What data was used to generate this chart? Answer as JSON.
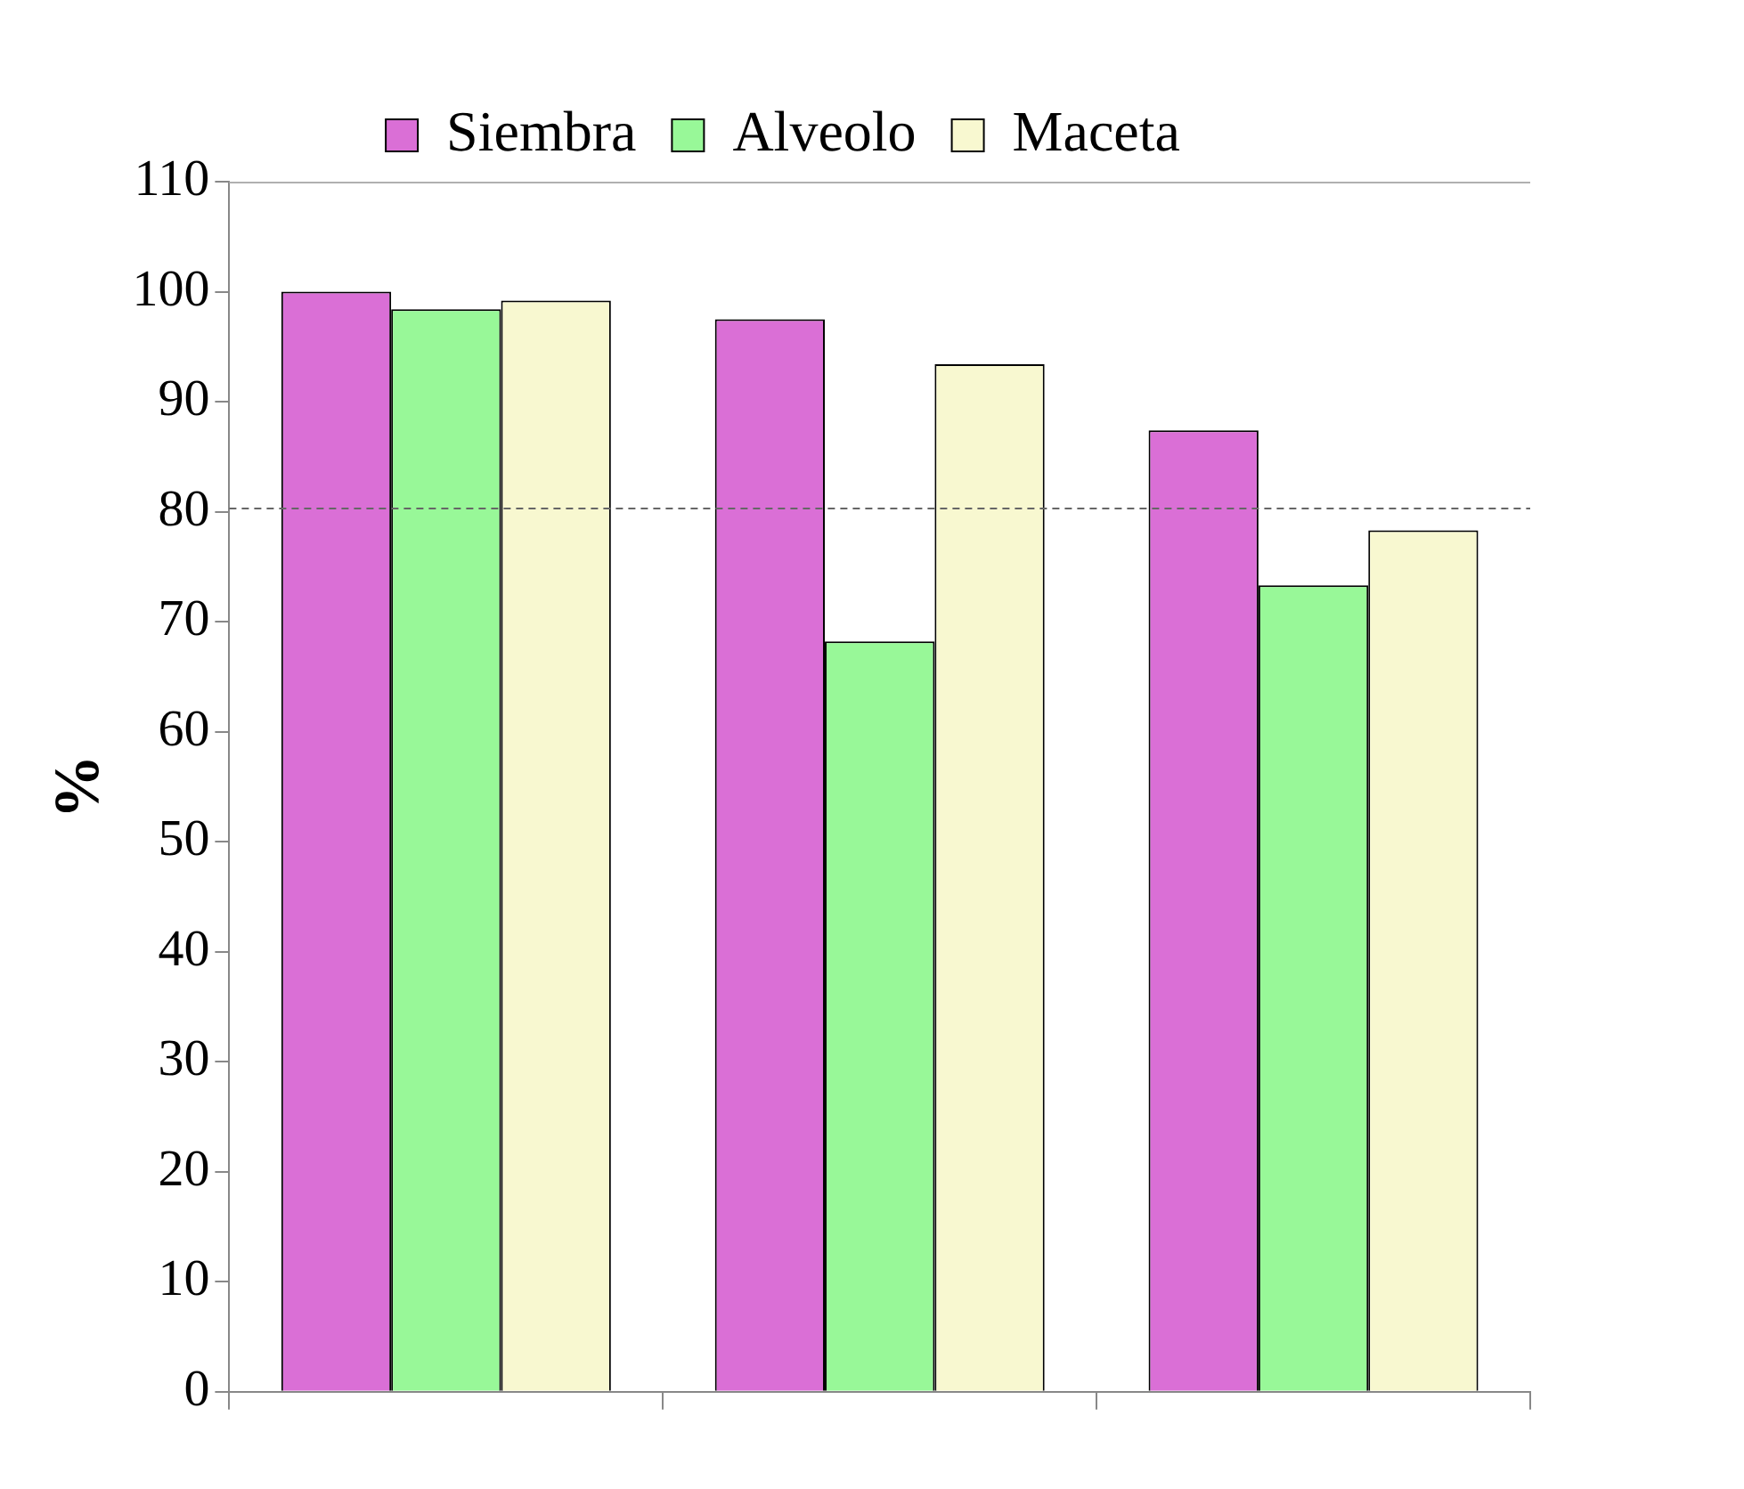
{
  "chart_data": {
    "type": "bar",
    "ylabel": "%",
    "categories": [
      null,
      null,
      null
    ],
    "series": [
      {
        "name": "Siembra",
        "color": "#da6fd6",
        "values": [
          100,
          97.5,
          87.4
        ]
      },
      {
        "name": "Alveolo",
        "color": "#98f898",
        "values": [
          98.4,
          68.2,
          73.3
        ]
      },
      {
        "name": "Maceta",
        "color": "#f8f8d0",
        "values": [
          99.2,
          93.4,
          78.3
        ]
      }
    ],
    "ylim": [
      0,
      110
    ],
    "yticks": [
      0,
      10,
      20,
      30,
      40,
      50,
      60,
      70,
      80,
      90,
      100,
      110
    ],
    "ref_lines": [
      {
        "axis": "y",
        "value": 80.3,
        "color": "#666666",
        "line_style": "dashed"
      }
    ],
    "grid": false,
    "legend": "top"
  }
}
